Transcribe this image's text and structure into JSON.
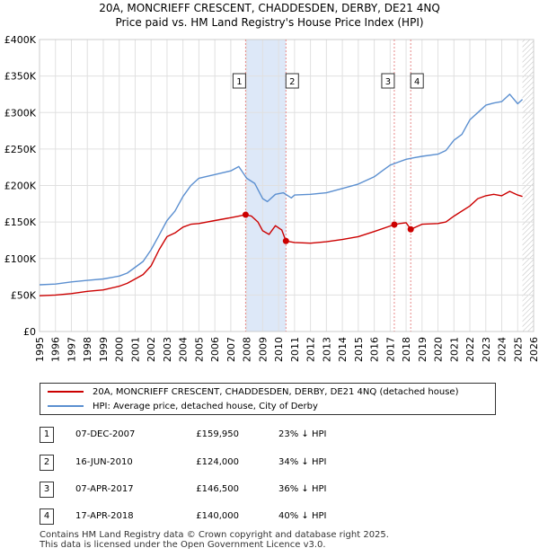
{
  "title_line1": "20A, MONCRIEFF CRESCENT, CHADDESDEN, DERBY, DE21 4NQ",
  "title_line2": "Price paid vs. HM Land Registry's House Price Index (HPI)",
  "colors": {
    "property": "#cc0000",
    "hpi": "#5b8fd0",
    "shade": "#dde8f8",
    "vline": "#e88888",
    "grid": "#e0e0e0"
  },
  "chart_data": {
    "type": "line",
    "xlim": [
      1995,
      2026
    ],
    "ylim": [
      0,
      400000
    ],
    "y_ticks": [
      0,
      50000,
      100000,
      150000,
      200000,
      250000,
      300000,
      350000,
      400000
    ],
    "y_tick_labels": [
      "£0",
      "£50K",
      "£100K",
      "£150K",
      "£200K",
      "£250K",
      "£300K",
      "£350K",
      "£400K"
    ],
    "x_ticks": [
      1995,
      1996,
      1997,
      1998,
      1999,
      2000,
      2001,
      2002,
      2003,
      2004,
      2005,
      2006,
      2007,
      2008,
      2009,
      2010,
      2011,
      2012,
      2013,
      2014,
      2015,
      2016,
      2017,
      2018,
      2019,
      2020,
      2021,
      2022,
      2023,
      2024,
      2025,
      2026
    ],
    "shaded_ranges": [
      [
        2007.93,
        2010.46
      ]
    ],
    "data_end_year": 2025.3,
    "series": [
      {
        "name": "20A, MONCRIEFF CRESCENT, CHADDESDEN, DERBY, DE21 4NQ (detached house)",
        "color": "#cc0000",
        "x": [
          1995,
          1996,
          1997,
          1998,
          1999,
          2000,
          2000.5,
          2001,
          2001.5,
          2002,
          2002.5,
          2003,
          2003.5,
          2004,
          2004.5,
          2005,
          2006,
          2007,
          2007.5,
          2007.93,
          2008.3,
          2008.7,
          2009,
          2009.4,
          2009.8,
          2010.2,
          2010.46,
          2011,
          2012,
          2013,
          2014,
          2015,
          2016,
          2017.26,
          2017.6,
          2018.0,
          2018.29,
          2019,
          2020,
          2020.5,
          2021,
          2022,
          2022.5,
          2023,
          2023.5,
          2024,
          2024.5,
          2025.0,
          2025.3
        ],
        "y": [
          49000,
          50000,
          52000,
          55000,
          57000,
          62000,
          66000,
          72000,
          78000,
          90000,
          112000,
          130000,
          135000,
          143000,
          147000,
          148000,
          152000,
          156000,
          158000,
          159950,
          158000,
          150000,
          138000,
          133000,
          145000,
          139000,
          124000,
          122000,
          121000,
          123000,
          126000,
          130000,
          137000,
          146500,
          148000,
          149000,
          140000,
          147000,
          148000,
          150000,
          158000,
          172000,
          182000,
          186000,
          188000,
          186000,
          192000,
          187000,
          185000
        ]
      },
      {
        "name": "HPI: Average price, detached house, City of Derby",
        "color": "#5b8fd0",
        "x": [
          1995,
          1996,
          1997,
          1998,
          1999,
          2000,
          2000.5,
          2001,
          2001.5,
          2002,
          2002.5,
          2003,
          2003.5,
          2004,
          2004.5,
          2005,
          2006,
          2007,
          2007.5,
          2008,
          2008.5,
          2009,
          2009.3,
          2009.8,
          2010.3,
          2010.8,
          2011,
          2012,
          2013,
          2014,
          2015,
          2016,
          2016.5,
          2017,
          2017.5,
          2018,
          2018.5,
          2019,
          2020,
          2020.5,
          2021,
          2021.5,
          2022,
          2022.5,
          2023,
          2023.5,
          2024,
          2024.5,
          2025.0,
          2025.3
        ],
        "y": [
          64000,
          65000,
          68000,
          70000,
          72000,
          76000,
          80000,
          88000,
          96000,
          112000,
          132000,
          152000,
          165000,
          185000,
          200000,
          210000,
          215000,
          220000,
          226000,
          210000,
          203000,
          182000,
          178000,
          188000,
          190000,
          183000,
          187000,
          188000,
          190000,
          196000,
          202000,
          212000,
          220000,
          228000,
          232000,
          236000,
          238000,
          240000,
          243000,
          248000,
          262000,
          270000,
          290000,
          300000,
          310000,
          313000,
          315000,
          325000,
          312000,
          318000
        ]
      }
    ],
    "sales": [
      {
        "label": "1",
        "x": 2007.93,
        "y": 159950
      },
      {
        "label": "2",
        "x": 2010.46,
        "y": 124000
      },
      {
        "label": "3",
        "x": 2017.26,
        "y": 146500
      },
      {
        "label": "4",
        "x": 2018.29,
        "y": 140000
      }
    ]
  },
  "legend": {
    "property_label": "20A, MONCRIEFF CRESCENT, CHADDESDEN, DERBY, DE21 4NQ (detached house)",
    "hpi_label": "HPI: Average price, detached house, City of Derby"
  },
  "sales_table": [
    {
      "num": "1",
      "date": "07-DEC-2007",
      "price": "£159,950",
      "hpi": "23% ↓ HPI"
    },
    {
      "num": "2",
      "date": "16-JUN-2010",
      "price": "£124,000",
      "hpi": "34% ↓ HPI"
    },
    {
      "num": "3",
      "date": "07-APR-2017",
      "price": "£146,500",
      "hpi": "36% ↓ HPI"
    },
    {
      "num": "4",
      "date": "17-APR-2018",
      "price": "£140,000",
      "hpi": "40% ↓ HPI"
    }
  ],
  "footer": {
    "line1": "Contains HM Land Registry data © Crown copyright and database right 2025.",
    "line2": "This data is licensed under the Open Government Licence v3.0."
  }
}
